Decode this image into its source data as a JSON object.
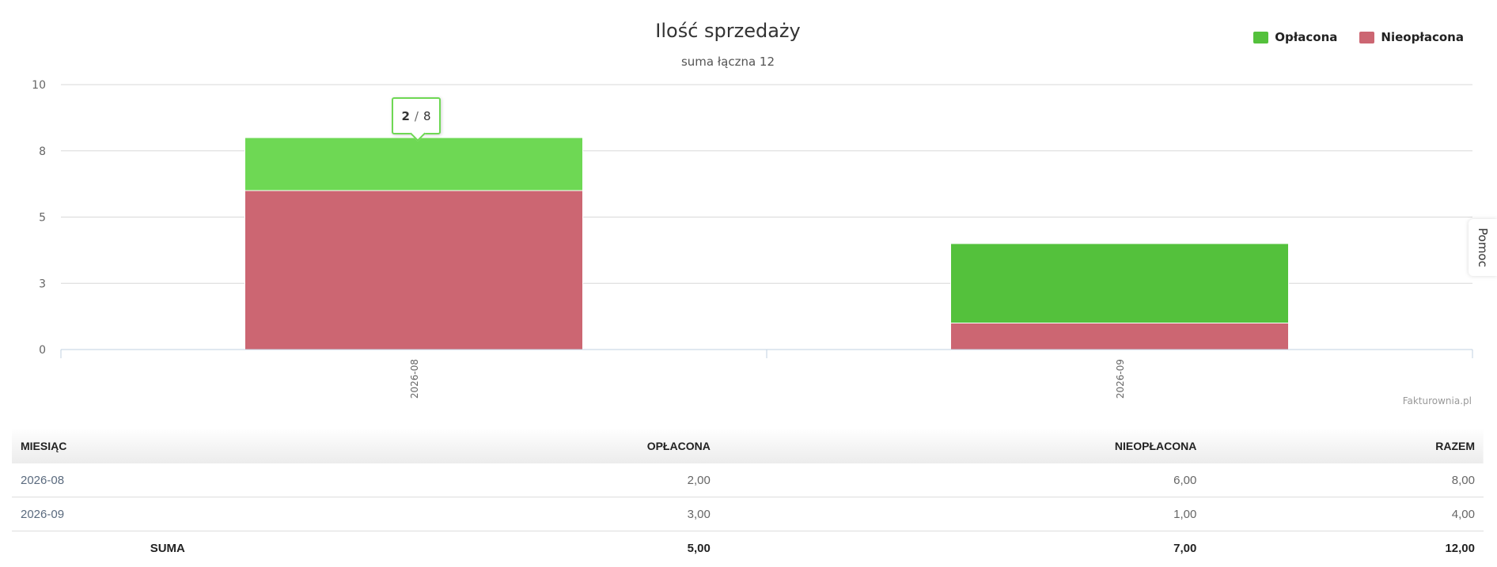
{
  "chart_data": {
    "type": "bar",
    "stacked": true,
    "title": "Ilość sprzedaży",
    "subtitle": "suma łączna 12",
    "categories": [
      "2026-08",
      "2026-09"
    ],
    "series": [
      {
        "name": "Opłacona",
        "values": [
          2,
          3
        ],
        "color": "#54c13c",
        "highlight_color": "#6ed854"
      },
      {
        "name": "Nieopłacona",
        "values": [
          6,
          1
        ],
        "color": "#cc6672"
      }
    ],
    "y_ticks": [
      "0",
      "3",
      "5",
      "8",
      "10"
    ],
    "ylim": [
      0,
      10
    ],
    "grid": true,
    "legend": "top-right"
  },
  "tooltip": {
    "value": "2",
    "separator": "/",
    "total": "8",
    "category": "2026-08"
  },
  "credit": "Fakturownia.pl",
  "help_tab": "Pomoc",
  "table": {
    "headers": [
      "MIESIĄC",
      "OPŁACONA",
      "NIEOPŁACONA",
      "RAZEM"
    ],
    "rows": [
      [
        "2026-08",
        "2,00",
        "6,00",
        "8,00"
      ],
      [
        "2026-09",
        "3,00",
        "1,00",
        "4,00"
      ]
    ],
    "sum": [
      "SUMA",
      "5,00",
      "7,00",
      "12,00"
    ]
  }
}
